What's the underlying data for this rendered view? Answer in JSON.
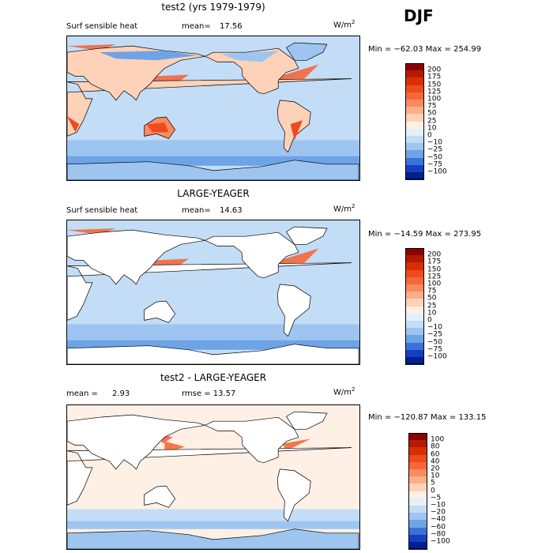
{
  "season": "DJF",
  "panels": [
    {
      "title": "test2 (yrs 1979-1979)",
      "field_label": "Surf sensible heat",
      "stat_label": "mean=",
      "stat_value": "17.56",
      "units": "W/m",
      "units_exp": "2",
      "minmax": "Min = −62.03  Max = 254.99",
      "colorbar": {
        "labels": [
          "200",
          "175",
          "150",
          "125",
          "100",
          "75",
          "50",
          "25",
          "10",
          "0",
          "−10",
          "−25",
          "−50",
          "−75",
          "−100"
        ],
        "colors": [
          "#8b0000",
          "#b31a00",
          "#d63000",
          "#ee4a1e",
          "#f5673a",
          "#f98a5e",
          "#fbae88",
          "#fdd2b8",
          "#fef0e4",
          "#e3f0fb",
          "#c3ddf7",
          "#9dc5f0",
          "#6ea4e6",
          "#3c72d8",
          "#1440c0",
          "#00208e"
        ]
      },
      "mode": "full"
    },
    {
      "title": "LARGE-YEAGER",
      "field_label": "Surf sensible heat",
      "stat_label": "mean=",
      "stat_value": "14.63",
      "units": "W/m",
      "units_exp": "2",
      "minmax": "Min = −14.59  Max = 273.95",
      "colorbar": {
        "labels": [
          "200",
          "175",
          "150",
          "125",
          "100",
          "75",
          "50",
          "25",
          "10",
          "0",
          "−10",
          "−25",
          "−50",
          "−75",
          "−100"
        ],
        "colors": [
          "#8b0000",
          "#b31a00",
          "#d63000",
          "#ee4a1e",
          "#f5673a",
          "#f98a5e",
          "#fbae88",
          "#fdd2b8",
          "#fef0e4",
          "#e3f0fb",
          "#c3ddf7",
          "#9dc5f0",
          "#6ea4e6",
          "#3c72d8",
          "#1440c0",
          "#00208e"
        ]
      },
      "mode": "ocean"
    },
    {
      "title": "test2 - LARGE-YEAGER",
      "field_label": "mean =",
      "stat_label": "2.93",
      "stat_value": "rmse =   13.57",
      "units": "W/m",
      "units_exp": "2",
      "minmax": "Min = −120.87  Max = 133.15",
      "colorbar": {
        "labels": [
          "100",
          "80",
          "60",
          "40",
          "20",
          "10",
          "5",
          "0",
          "−5",
          "−10",
          "−20",
          "−40",
          "−60",
          "−80",
          "−100"
        ],
        "colors": [
          "#8b0000",
          "#b31a00",
          "#d63000",
          "#ee4a1e",
          "#f5673a",
          "#f98a5e",
          "#fbae88",
          "#fdd2b8",
          "#fef0e4",
          "#e3f0fb",
          "#c3ddf7",
          "#9dc5f0",
          "#6ea4e6",
          "#3c72d8",
          "#1440c0",
          "#00208e"
        ]
      },
      "mode": "diff"
    }
  ],
  "chart_data": [
    {
      "type": "heatmap",
      "title": "test2 (yrs 1979-1979)",
      "variable": "Surf sensible heat",
      "mean": 17.56,
      "min": -62.03,
      "max": 254.99,
      "units": "W/m2",
      "levels": [
        -100,
        -75,
        -50,
        -25,
        -10,
        0,
        10,
        25,
        50,
        75,
        100,
        125,
        150,
        175,
        200
      ]
    },
    {
      "type": "heatmap",
      "title": "LARGE-YEAGER",
      "variable": "Surf sensible heat",
      "mean": 14.63,
      "min": -14.59,
      "max": 273.95,
      "units": "W/m2",
      "levels": [
        -100,
        -75,
        -50,
        -25,
        -10,
        0,
        10,
        25,
        50,
        75,
        100,
        125,
        150,
        175,
        200
      ]
    },
    {
      "type": "heatmap",
      "title": "test2 - LARGE-YEAGER",
      "mean": 2.93,
      "rmse": 13.57,
      "min": -120.87,
      "max": 133.15,
      "units": "W/m2",
      "levels": [
        -100,
        -80,
        -60,
        -40,
        -20,
        -10,
        -5,
        0,
        5,
        10,
        20,
        40,
        60,
        80,
        100
      ]
    }
  ]
}
